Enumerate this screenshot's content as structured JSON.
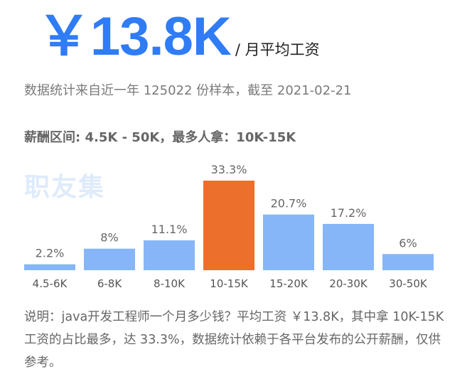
{
  "header": {
    "avg_salary": "￥13.8K",
    "avg_salary_unit": "/ 月平均工资",
    "sample_statement": "数据统计来自近一年 125022 份样本，截至 2021-02-21",
    "range_statement": "薪酬区间: 4.5K - 50K，最多人拿：10K-15K"
  },
  "watermark": "职友集",
  "colors": {
    "accent": "#2f7cf6",
    "bar": "#86b6f7",
    "highlight": "#ec6f2c"
  },
  "chart_data": {
    "type": "bar",
    "categories": [
      "4.5-6K",
      "6-8K",
      "8-10K",
      "10-15K",
      "15-20K",
      "20-30K",
      "30-50K"
    ],
    "values": [
      2.2,
      8,
      11.1,
      33.3,
      20.7,
      17.2,
      6
    ],
    "value_labels": [
      "2.2%",
      "8%",
      "11.1%",
      "33.3%",
      "20.7%",
      "17.2%",
      "6%"
    ],
    "highlight_index": 3,
    "ylim": [
      0,
      33.3
    ],
    "grid": false,
    "legend": "none"
  },
  "note": "说明：java开发工程师一个月多少钱？平均工资 ￥13.8K，其中拿 10K-15K 工资的占比最多，达 33.3%，数据统计依赖于各平台发布的公开薪酬，仅供参考。"
}
